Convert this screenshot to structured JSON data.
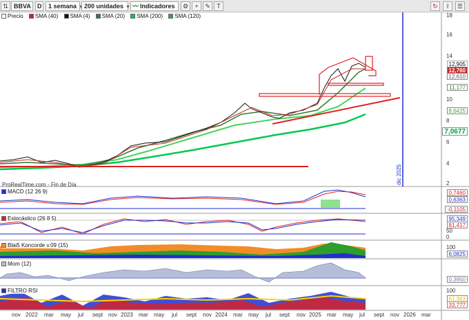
{
  "toolbar": {
    "ticker": "BBVA",
    "exchange_letter": "D",
    "period": "1 semana",
    "units": "200 unidades",
    "indicators_label": "Indicadores"
  },
  "legend": [
    {
      "label": "Precio",
      "color": "#ffffff"
    },
    {
      "label": "SMA (40)",
      "color": "#c62828"
    },
    {
      "label": "SMA (4)",
      "color": "#111111"
    },
    {
      "label": "SMA (20)",
      "color": "#2e7d32"
    },
    {
      "label": "SMA (200)",
      "color": "#00c853"
    },
    {
      "label": "SMA (120)",
      "color": "#43a047"
    }
  ],
  "source_label": "ProRealTime.com - Fin de Día",
  "vertical_marker_label": "dic 2025",
  "price_axis": {
    "ticks": [
      "18",
      "16",
      "14",
      "12",
      "10",
      "8",
      "6",
      "4",
      "2"
    ],
    "tags": {
      "a": "12,905",
      "b": "12,760",
      "c": "12,610",
      "d": "11,177",
      "e": "8,6425",
      "f": "7,0677"
    }
  },
  "panes": {
    "macd": {
      "label": "MACD (12 26 9)",
      "tag1": "0,7460",
      "tag2": "0,6363",
      "tag3": "-0,1105"
    },
    "stoch": {
      "label": "Estocástico (26 8 5)",
      "tag1": "95,349",
      "tag2": "81,417",
      "tick_hi": "50",
      "tick_lo": "0"
    },
    "blai5": {
      "label": "Blai5 Koncorde v.09 (15)",
      "tick_hi": "100",
      "tick_lo": "0",
      "tag1": "6,0825"
    },
    "mom": {
      "label": "Mom (12)",
      "tag1": "0,3950"
    },
    "rsi": {
      "label": "FILTRO RSI",
      "tick_hi": "100",
      "tag1": "61,363",
      "tag2": "33,777",
      "tick_lo": "0"
    }
  },
  "time_axis": [
    "nov",
    "2022",
    "mar",
    "may",
    "jul",
    "sept",
    "nov",
    "2023",
    "mar",
    "may",
    "jul",
    "sept",
    "nov",
    "2024",
    "mar",
    "may",
    "jul",
    "sept",
    "nov",
    "2025",
    "mar",
    "may",
    "jul",
    "sept",
    "nov",
    "2026",
    "mar"
  ],
  "colors": {
    "accent_blue": "#1f2fd0",
    "trend_red": "#e02020",
    "sma_green": "#00c853"
  }
}
